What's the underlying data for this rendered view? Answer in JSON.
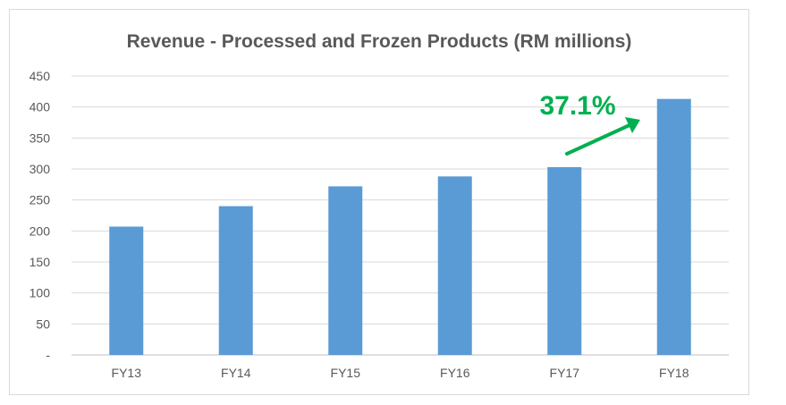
{
  "chart_data": {
    "type": "bar",
    "title": "Revenue - Processed and Frozen Products (RM millions)",
    "xlabel": "",
    "ylabel": "",
    "categories": [
      "FY13",
      "FY14",
      "FY15",
      "FY16",
      "FY17",
      "FY18"
    ],
    "values": [
      207,
      240,
      272,
      288,
      303,
      413
    ],
    "ylim": [
      0,
      450
    ],
    "yticks": [
      0,
      50,
      100,
      150,
      200,
      250,
      300,
      350,
      400,
      450
    ],
    "ytick_labels": [
      "-",
      "50",
      "100",
      "150",
      "200",
      "250",
      "300",
      "350",
      "400",
      "450"
    ],
    "grid": true,
    "legend": "none",
    "bar_color": "#5b9bd5",
    "annotation": {
      "text": "37.1%",
      "color": "#00b050"
    }
  }
}
